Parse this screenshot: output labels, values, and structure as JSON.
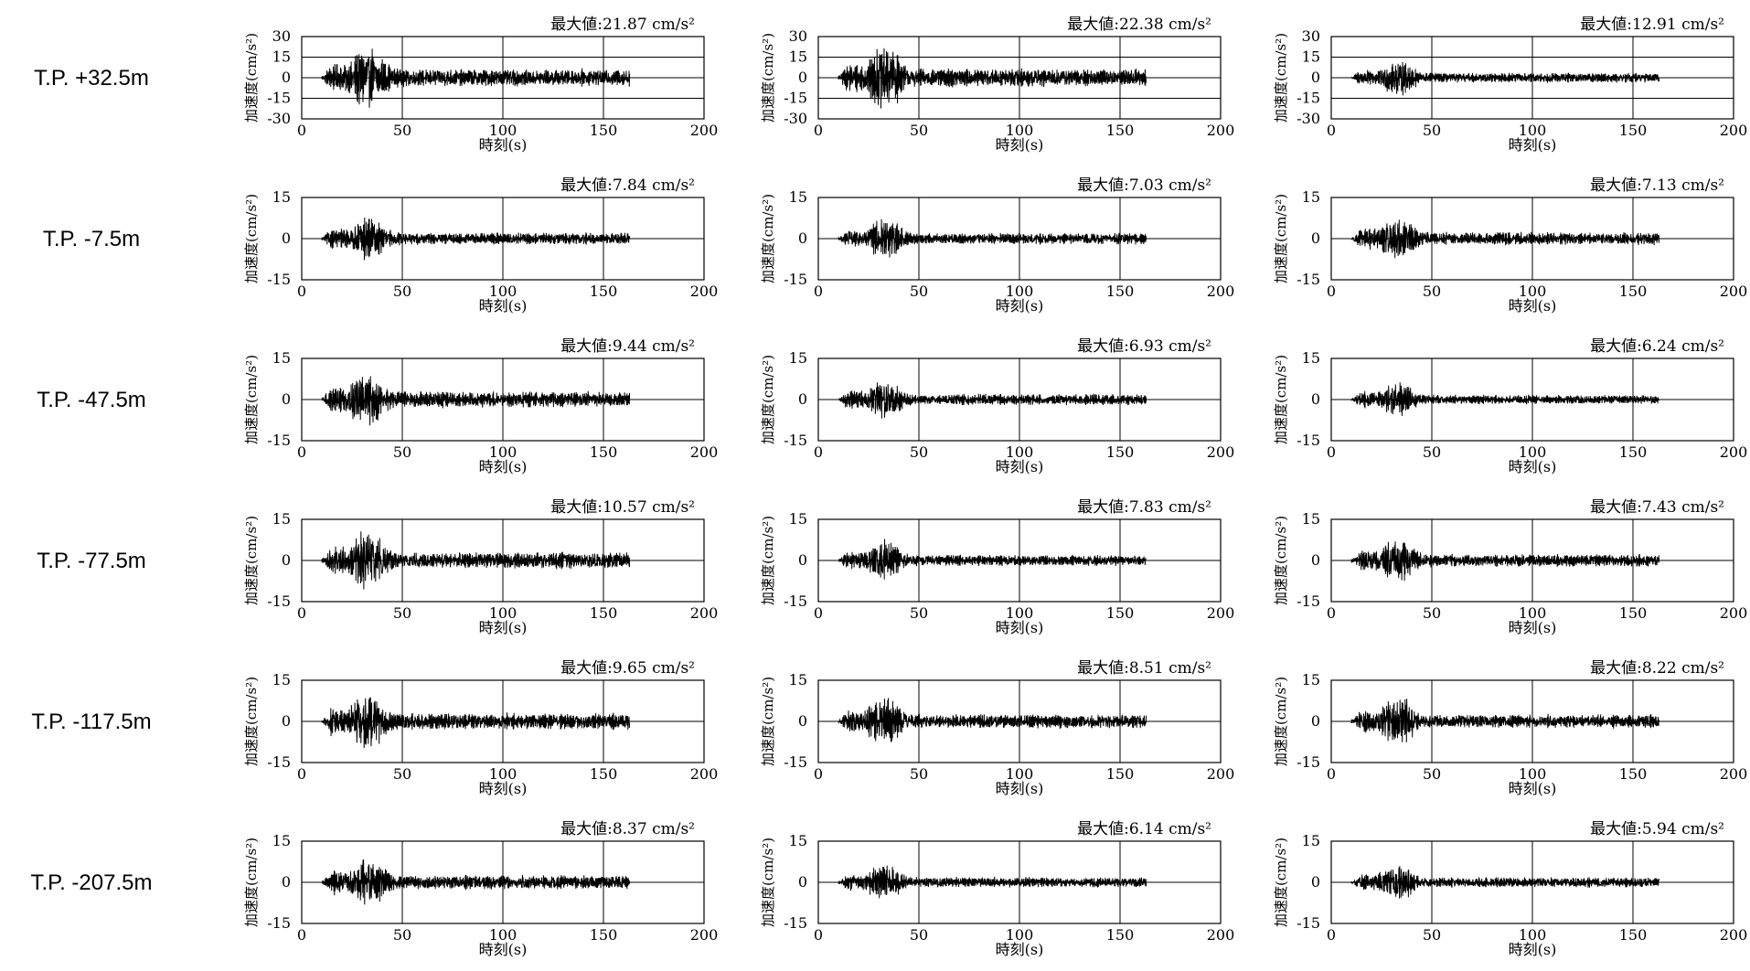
{
  "row_labels": [
    "T.P. +32.5m",
    "T.P. -7.5m",
    "T.P. -47.5m",
    "T.P. -77.5m",
    "T.P. -117.5m",
    "T.P. -207.5m"
  ],
  "colors": {
    "trace": "#000000",
    "grid": "#000000",
    "background": "#ffffff"
  },
  "chart_data": [
    {
      "type": "line",
      "row": 0,
      "col": 0,
      "annotation": "最大値:21.87 cm/s²",
      "peak": 21.87,
      "xlabel": "時刻(s)",
      "ylabel": "加速度(cm/s²)",
      "xlim": [
        0,
        200
      ],
      "ylim": [
        -30,
        30
      ],
      "xticks": [
        0,
        50,
        100,
        150,
        200
      ],
      "yticks": [
        30,
        15,
        0,
        -15,
        -30
      ],
      "grid": true,
      "duration": [
        10,
        163
      ]
    },
    {
      "type": "line",
      "row": 0,
      "col": 1,
      "annotation": "最大値:22.38 cm/s²",
      "peak": 22.38,
      "xlabel": "時刻(s)",
      "ylabel": "加速度(cm/s²)",
      "xlim": [
        0,
        200
      ],
      "ylim": [
        -30,
        30
      ],
      "xticks": [
        0,
        50,
        100,
        150,
        200
      ],
      "yticks": [
        30,
        15,
        0,
        -15,
        -30
      ],
      "grid": true,
      "duration": [
        10,
        163
      ]
    },
    {
      "type": "line",
      "row": 0,
      "col": 2,
      "annotation": "最大値:12.91 cm/s²",
      "peak": 12.91,
      "xlabel": "時刻(s)",
      "ylabel": "加速度(cm/s²)",
      "xlim": [
        0,
        200
      ],
      "ylim": [
        -30,
        30
      ],
      "xticks": [
        0,
        50,
        100,
        150,
        200
      ],
      "yticks": [
        30,
        15,
        0,
        -15,
        -30
      ],
      "grid": true,
      "duration": [
        10,
        163
      ]
    },
    {
      "type": "line",
      "row": 1,
      "col": 0,
      "annotation": "最大値:7.84 cm/s²",
      "peak": 7.84,
      "xlabel": "時刻(s)",
      "ylabel": "加速度(cm/s²)",
      "xlim": [
        0,
        200
      ],
      "ylim": [
        -15,
        15
      ],
      "xticks": [
        0,
        50,
        100,
        150,
        200
      ],
      "yticks": [
        15,
        0,
        -15
      ],
      "grid": true,
      "duration": [
        10,
        163
      ]
    },
    {
      "type": "line",
      "row": 1,
      "col": 1,
      "annotation": "最大値:7.03 cm/s²",
      "peak": 7.03,
      "xlabel": "時刻(s)",
      "ylabel": "加速度(cm/s²)",
      "xlim": [
        0,
        200
      ],
      "ylim": [
        -15,
        15
      ],
      "xticks": [
        0,
        50,
        100,
        150,
        200
      ],
      "yticks": [
        15,
        0,
        -15
      ],
      "grid": true,
      "duration": [
        10,
        163
      ]
    },
    {
      "type": "line",
      "row": 1,
      "col": 2,
      "annotation": "最大値:7.13 cm/s²",
      "peak": 7.13,
      "xlabel": "時刻(s)",
      "ylabel": "加速度(cm/s²)",
      "xlim": [
        0,
        200
      ],
      "ylim": [
        -15,
        15
      ],
      "xticks": [
        0,
        50,
        100,
        150,
        200
      ],
      "yticks": [
        15,
        0,
        -15
      ],
      "grid": true,
      "duration": [
        10,
        163
      ]
    },
    {
      "type": "line",
      "row": 2,
      "col": 0,
      "annotation": "最大値:9.44 cm/s²",
      "peak": 9.44,
      "xlabel": "時刻(s)",
      "ylabel": "加速度(cm/s²)",
      "xlim": [
        0,
        200
      ],
      "ylim": [
        -15,
        15
      ],
      "xticks": [
        0,
        50,
        100,
        150,
        200
      ],
      "yticks": [
        15,
        0,
        -15
      ],
      "grid": true,
      "duration": [
        10,
        163
      ]
    },
    {
      "type": "line",
      "row": 2,
      "col": 1,
      "annotation": "最大値:6.93 cm/s²",
      "peak": 6.93,
      "xlabel": "時刻(s)",
      "ylabel": "加速度(cm/s²)",
      "xlim": [
        0,
        200
      ],
      "ylim": [
        -15,
        15
      ],
      "xticks": [
        0,
        50,
        100,
        150,
        200
      ],
      "yticks": [
        15,
        0,
        -15
      ],
      "grid": true,
      "duration": [
        10,
        163
      ]
    },
    {
      "type": "line",
      "row": 2,
      "col": 2,
      "annotation": "最大値:6.24 cm/s²",
      "peak": 6.24,
      "xlabel": "時刻(s)",
      "ylabel": "加速度(cm/s²)",
      "xlim": [
        0,
        200
      ],
      "ylim": [
        -15,
        15
      ],
      "xticks": [
        0,
        50,
        100,
        150,
        200
      ],
      "yticks": [
        15,
        0,
        -15
      ],
      "grid": true,
      "duration": [
        10,
        163
      ]
    },
    {
      "type": "line",
      "row": 3,
      "col": 0,
      "annotation": "最大値:10.57 cm/s²",
      "peak": 10.57,
      "xlabel": "時刻(s)",
      "ylabel": "加速度(cm/s²)",
      "xlim": [
        0,
        200
      ],
      "ylim": [
        -15,
        15
      ],
      "xticks": [
        0,
        50,
        100,
        150,
        200
      ],
      "yticks": [
        15,
        0,
        -15
      ],
      "grid": true,
      "duration": [
        10,
        163
      ]
    },
    {
      "type": "line",
      "row": 3,
      "col": 1,
      "annotation": "最大値:7.83 cm/s²",
      "peak": 7.83,
      "xlabel": "時刻(s)",
      "ylabel": "加速度(cm/s²)",
      "xlim": [
        0,
        200
      ],
      "ylim": [
        -15,
        15
      ],
      "xticks": [
        0,
        50,
        100,
        150,
        200
      ],
      "yticks": [
        15,
        0,
        -15
      ],
      "grid": true,
      "duration": [
        10,
        163
      ]
    },
    {
      "type": "line",
      "row": 3,
      "col": 2,
      "annotation": "最大値:7.43 cm/s²",
      "peak": 7.43,
      "xlabel": "時刻(s)",
      "ylabel": "加速度(cm/s²)",
      "xlim": [
        0,
        200
      ],
      "ylim": [
        -15,
        15
      ],
      "xticks": [
        0,
        50,
        100,
        150,
        200
      ],
      "yticks": [
        15,
        0,
        -15
      ],
      "grid": true,
      "duration": [
        10,
        163
      ]
    },
    {
      "type": "line",
      "row": 4,
      "col": 0,
      "annotation": "最大値:9.65 cm/s²",
      "peak": 9.65,
      "xlabel": "時刻(s)",
      "ylabel": "加速度(cm/s²)",
      "xlim": [
        0,
        200
      ],
      "ylim": [
        -15,
        15
      ],
      "xticks": [
        0,
        50,
        100,
        150,
        200
      ],
      "yticks": [
        15,
        0,
        -15
      ],
      "grid": true,
      "duration": [
        10,
        163
      ]
    },
    {
      "type": "line",
      "row": 4,
      "col": 1,
      "annotation": "最大値:8.51 cm/s²",
      "peak": 8.51,
      "xlabel": "時刻(s)",
      "ylabel": "加速度(cm/s²)",
      "xlim": [
        0,
        200
      ],
      "ylim": [
        -15,
        15
      ],
      "xticks": [
        0,
        50,
        100,
        150,
        200
      ],
      "yticks": [
        15,
        0,
        -15
      ],
      "grid": true,
      "duration": [
        10,
        163
      ]
    },
    {
      "type": "line",
      "row": 4,
      "col": 2,
      "annotation": "最大値:8.22 cm/s²",
      "peak": 8.22,
      "xlabel": "時刻(s)",
      "ylabel": "加速度(cm/s²)",
      "xlim": [
        0,
        200
      ],
      "ylim": [
        -15,
        15
      ],
      "xticks": [
        0,
        50,
        100,
        150,
        200
      ],
      "yticks": [
        15,
        0,
        -15
      ],
      "grid": true,
      "duration": [
        10,
        163
      ]
    },
    {
      "type": "line",
      "row": 5,
      "col": 0,
      "annotation": "最大値:8.37 cm/s²",
      "peak": 8.37,
      "xlabel": "時刻(s)",
      "ylabel": "加速度(cm/s²)",
      "xlim": [
        0,
        200
      ],
      "ylim": [
        -15,
        15
      ],
      "xticks": [
        0,
        50,
        100,
        150,
        200
      ],
      "yticks": [
        15,
        0,
        -15
      ],
      "grid": true,
      "duration": [
        10,
        163
      ]
    },
    {
      "type": "line",
      "row": 5,
      "col": 1,
      "annotation": "最大値:6.14 cm/s²",
      "peak": 6.14,
      "xlabel": "時刻(s)",
      "ylabel": "加速度(cm/s²)",
      "xlim": [
        0,
        200
      ],
      "ylim": [
        -15,
        15
      ],
      "xticks": [
        0,
        50,
        100,
        150,
        200
      ],
      "yticks": [
        15,
        0,
        -15
      ],
      "grid": true,
      "duration": [
        10,
        163
      ]
    },
    {
      "type": "line",
      "row": 5,
      "col": 2,
      "annotation": "最大値:5.94 cm/s²",
      "peak": 5.94,
      "xlabel": "時刻(s)",
      "ylabel": "加速度(cm/s²)",
      "xlim": [
        0,
        200
      ],
      "ylim": [
        -15,
        15
      ],
      "xticks": [
        0,
        50,
        100,
        150,
        200
      ],
      "yticks": [
        15,
        0,
        -15
      ],
      "grid": true,
      "duration": [
        10,
        163
      ]
    }
  ]
}
